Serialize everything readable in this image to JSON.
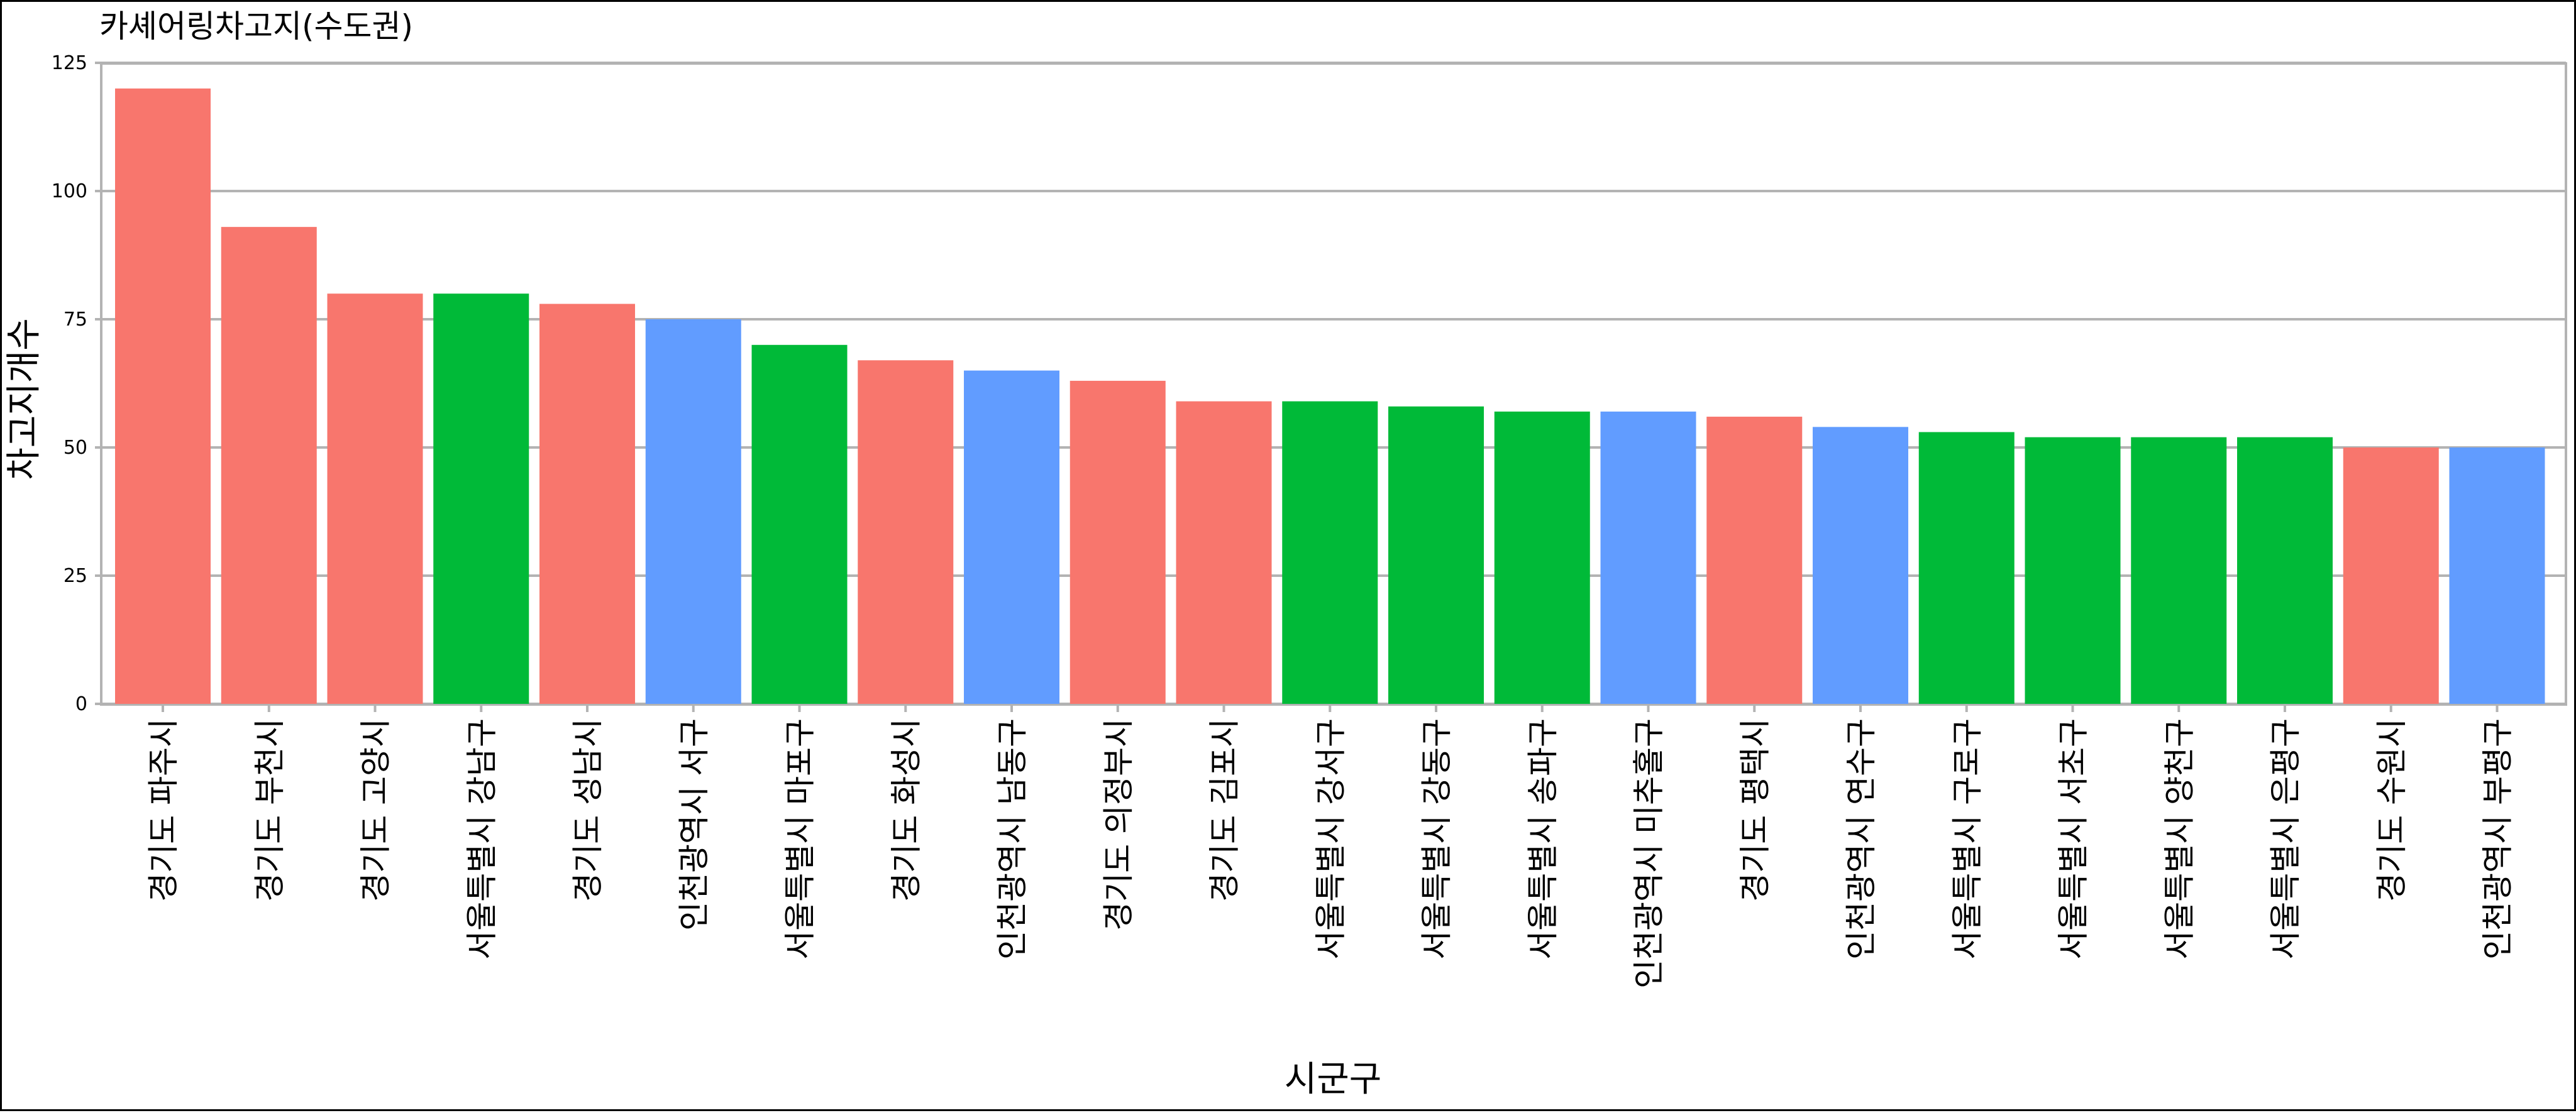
{
  "chart_data": {
    "type": "bar",
    "title": "카셰어링차고지(수도권)",
    "xlabel": "시군구",
    "ylabel": "차고지개수",
    "ylim": [
      0,
      125
    ],
    "yticks": [
      0,
      25,
      50,
      75,
      100,
      125
    ],
    "grid": true,
    "categories": [
      "경기도 파주시",
      "경기도 부천시",
      "경기도 고양시",
      "서울특별시 강남구",
      "경기도 성남시",
      "인천광역시 서구",
      "서울특별시 마포구",
      "경기도 화성시",
      "인천광역시 남동구",
      "경기도 의정부시",
      "경기도 김포시",
      "서울특별시 강서구",
      "서울특별시 강동구",
      "서울특별시 송파구",
      "인천광역시 미추홀구",
      "경기도 평택시",
      "인천광역시 연수구",
      "서울특별시 구로구",
      "서울특별시 서초구",
      "서울특별시 양천구",
      "서울특별시 은평구",
      "경기도 수원시",
      "인천광역시 부평구"
    ],
    "values": [
      120,
      93,
      80,
      80,
      78,
      75,
      70,
      67,
      65,
      63,
      59,
      59,
      58,
      57,
      57,
      56,
      54,
      53,
      52,
      52,
      52,
      50,
      50
    ],
    "color_by_region": {
      "경기도": "#F8766D",
      "서울특별시": "#00BA38",
      "인천광역시": "#619CFF"
    },
    "colors": {
      "background": "#ffffff",
      "gridline": "#b3b3b3",
      "axis": "#000000"
    }
  }
}
